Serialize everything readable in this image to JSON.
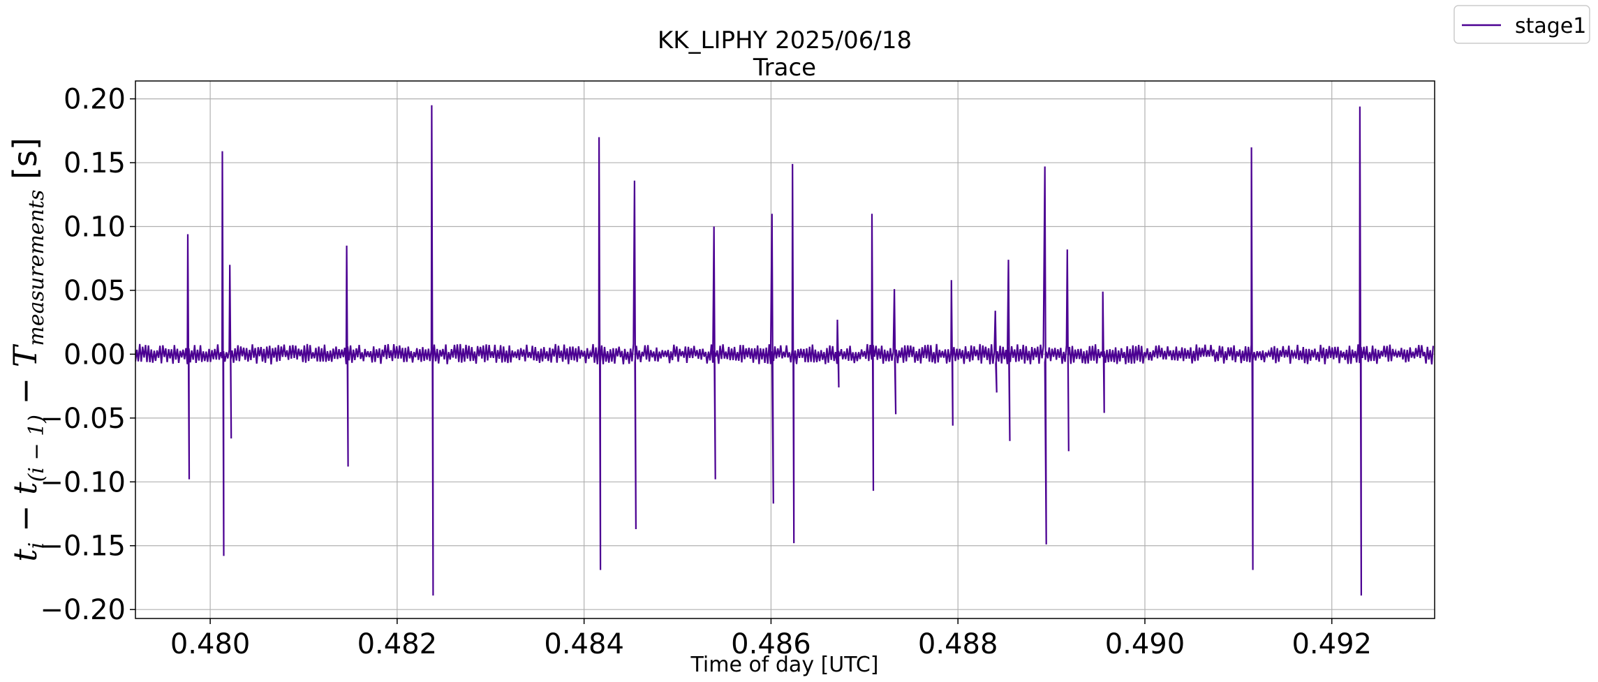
{
  "chart_data": {
    "type": "line",
    "title": "KK_LIPHY 2025/06/18",
    "subtitle": "Trace",
    "xlabel": "Time of day [UTC]",
    "ylabel": "t_i - t_(i-1) - T_measurements [s]",
    "xlim": [
      0.4792,
      0.4931
    ],
    "ylim": [
      -0.207,
      0.214
    ],
    "x_ticks": [
      "0.480",
      "0.482",
      "0.484",
      "0.486",
      "0.488",
      "0.490",
      "0.492"
    ],
    "y_ticks": [
      "0.20",
      "0.15",
      "0.10",
      "0.05",
      "0.00",
      "−0.05",
      "−0.10",
      "−0.15",
      "−0.20"
    ],
    "grid": true,
    "legend": {
      "position": "outside-top-right",
      "entries": [
        "stage1"
      ]
    },
    "baseline": {
      "value": 0.0,
      "noise_amplitude": 0.01
    },
    "series": [
      {
        "name": "stage1",
        "color": "#4b0092",
        "spikes": [
          {
            "x": 0.47976,
            "up": 0.094,
            "down": -0.098
          },
          {
            "x": 0.48013,
            "up": 0.159,
            "down": -0.158
          },
          {
            "x": 0.48021,
            "up": 0.07,
            "down": -0.066
          },
          {
            "x": 0.48146,
            "up": 0.085,
            "down": -0.088
          },
          {
            "x": 0.48237,
            "up": 0.195,
            "down": -0.189
          },
          {
            "x": 0.48416,
            "up": 0.17,
            "down": -0.169
          },
          {
            "x": 0.48454,
            "up": 0.136,
            "down": -0.137
          },
          {
            "x": 0.48539,
            "up": 0.1,
            "down": -0.098
          },
          {
            "x": 0.48601,
            "up": 0.11,
            "down": -0.117
          },
          {
            "x": 0.48623,
            "up": 0.149,
            "down": -0.148
          },
          {
            "x": 0.48671,
            "up": 0.027,
            "down": -0.026
          },
          {
            "x": 0.48708,
            "up": 0.11,
            "down": -0.107
          },
          {
            "x": 0.48732,
            "up": 0.051,
            "down": -0.047
          },
          {
            "x": 0.48793,
            "up": 0.058,
            "down": -0.056
          },
          {
            "x": 0.4884,
            "up": 0.034,
            "down": -0.03
          },
          {
            "x": 0.48854,
            "up": 0.074,
            "down": -0.068
          },
          {
            "x": 0.48893,
            "up": 0.147,
            "down": -0.149
          },
          {
            "x": 0.48917,
            "up": 0.082,
            "down": -0.076
          },
          {
            "x": 0.48955,
            "up": 0.049,
            "down": -0.046
          },
          {
            "x": 0.49114,
            "up": 0.162,
            "down": -0.169
          },
          {
            "x": 0.4923,
            "up": 0.194,
            "down": -0.189
          }
        ]
      }
    ]
  }
}
